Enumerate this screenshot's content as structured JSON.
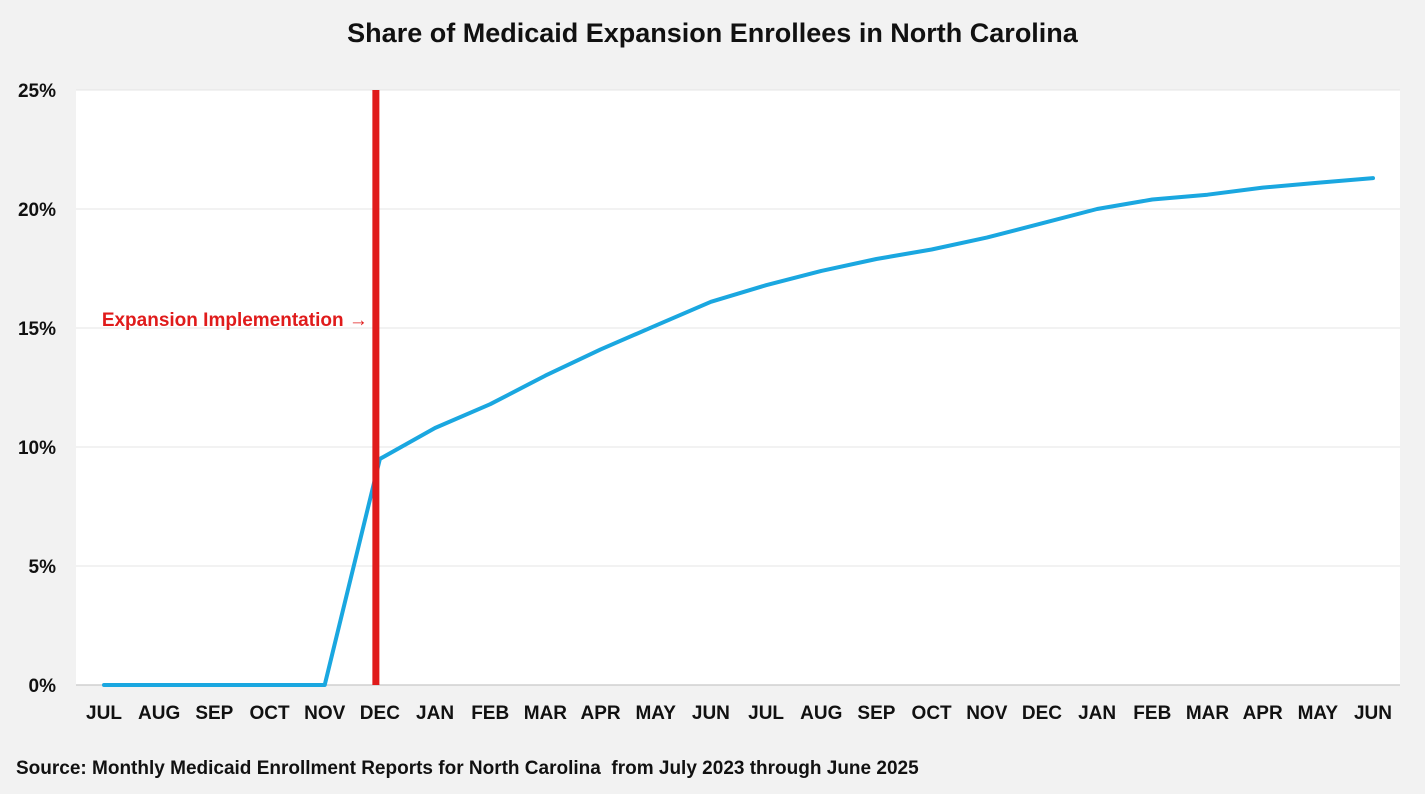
{
  "chart_data": {
    "type": "line",
    "title": "Share of Medicaid Expansion Enrollees in North Carolina",
    "categories": [
      "JUL",
      "AUG",
      "SEP",
      "OCT",
      "NOV",
      "DEC",
      "JAN",
      "FEB",
      "MAR",
      "APR",
      "MAY",
      "JUN",
      "JUL",
      "AUG",
      "SEP",
      "OCT",
      "NOV",
      "DEC",
      "JAN",
      "FEB",
      "MAR",
      "APR",
      "MAY",
      "JUN"
    ],
    "series": [
      {
        "values": [
          0,
          0,
          0,
          0,
          0,
          9.5,
          10.8,
          11.8,
          13.0,
          14.1,
          15.1,
          16.1,
          16.8,
          17.4,
          17.9,
          18.3,
          18.8,
          19.4,
          20.0,
          20.4,
          20.6,
          20.9,
          21.1,
          21.3
        ],
        "color": "#1aa7e0"
      }
    ],
    "xlabel": "",
    "ylabel": "",
    "ylim": [
      0,
      25
    ],
    "yticks": [
      0,
      5,
      10,
      15,
      20,
      25
    ],
    "ytick_suffix": "%",
    "grid": true,
    "annotation": {
      "text": "Expansion Implementation →",
      "at_category_index": 5,
      "color": "#e01b1b"
    },
    "source": "Source: Monthly Medicaid Enrollment Reports for North Carolina  from July 2023 through June 2025"
  }
}
